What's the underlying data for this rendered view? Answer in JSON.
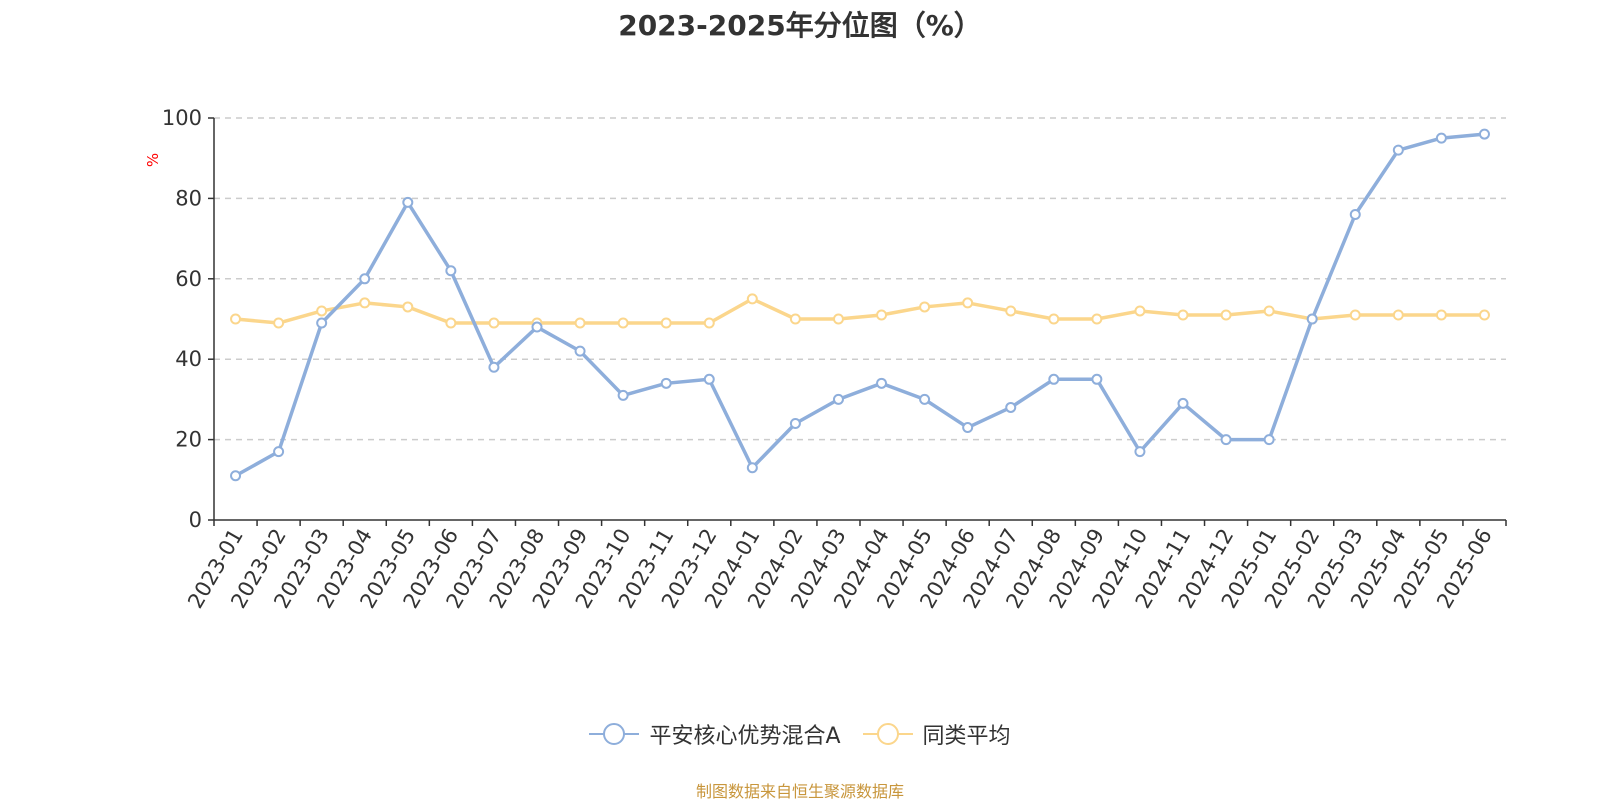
{
  "chart_data": {
    "type": "line",
    "title": "2023-2025年分位图（%）",
    "ylabel": "%",
    "xlabel": "",
    "ylim": [
      0,
      100
    ],
    "yticks": [
      0,
      20,
      40,
      60,
      80,
      100
    ],
    "grid": true,
    "legend_position": "bottom",
    "categories": [
      "2023-01",
      "2023-02",
      "2023-03",
      "2023-04",
      "2023-05",
      "2023-06",
      "2023-07",
      "2023-08",
      "2023-09",
      "2023-10",
      "2023-11",
      "2023-12",
      "2024-01",
      "2024-02",
      "2024-03",
      "2024-04",
      "2024-05",
      "2024-06",
      "2024-07",
      "2024-08",
      "2024-09",
      "2024-10",
      "2024-11",
      "2024-12",
      "2025-01",
      "2025-02",
      "2025-03",
      "2025-04",
      "2025-05",
      "2025-06"
    ],
    "series": [
      {
        "name": "平安核心优势混合A",
        "color": "#8eaedb",
        "values": [
          11,
          17,
          49,
          60,
          79,
          62,
          38,
          48,
          42,
          31,
          34,
          35,
          13,
          24,
          30,
          34,
          30,
          23,
          28,
          35,
          35,
          17,
          29,
          20,
          20,
          50,
          76,
          92,
          95,
          96
        ]
      },
      {
        "name": "同类平均",
        "color": "#fbd68c",
        "values": [
          50,
          49,
          52,
          54,
          53,
          49,
          49,
          49,
          49,
          49,
          49,
          49,
          55,
          50,
          50,
          51,
          53,
          54,
          52,
          50,
          50,
          52,
          51,
          51,
          52,
          50,
          51,
          51,
          51,
          51
        ]
      }
    ]
  },
  "footer": {
    "source": "制图数据来自恒生聚源数据库"
  }
}
